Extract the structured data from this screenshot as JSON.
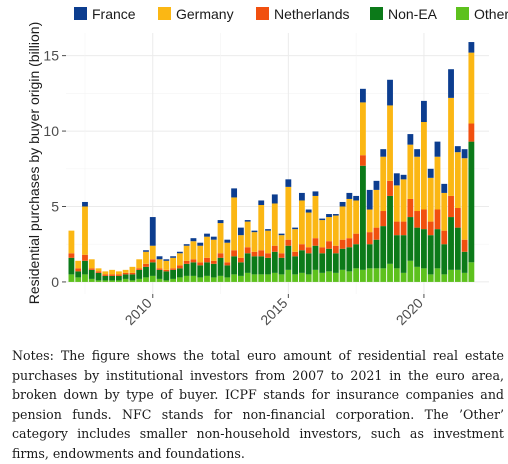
{
  "chart_data": {
    "type": "bar",
    "stacked": true,
    "ylabel": "Residential purchases by buyer origin (billion)",
    "xlabel": "",
    "x_range": [
      2006.8,
      2022.4
    ],
    "ylim": [
      -0.8,
      16.5
    ],
    "yticks": [
      0,
      5,
      10,
      15
    ],
    "xticks": [
      2010,
      2015,
      2020
    ],
    "grid": true,
    "legend_position": "top",
    "legend": [
      "France",
      "Germany",
      "Netherlands",
      "Non-EA",
      "Other EA"
    ],
    "colors": {
      "France": "#0c3d8f",
      "Germany": "#fbb714",
      "Netherlands": "#f1500f",
      "Non-EA": "#0c7a19",
      "Other EA": "#5dc11d"
    },
    "x": [
      2007.0,
      2007.25,
      2007.5,
      2007.75,
      2008.0,
      2008.25,
      2008.5,
      2008.75,
      2009.0,
      2009.25,
      2009.5,
      2009.75,
      2010.0,
      2010.25,
      2010.5,
      2010.75,
      2011.0,
      2011.25,
      2011.5,
      2011.75,
      2012.0,
      2012.25,
      2012.5,
      2012.75,
      2013.0,
      2013.25,
      2013.5,
      2013.75,
      2014.0,
      2014.25,
      2014.5,
      2014.75,
      2015.0,
      2015.25,
      2015.5,
      2015.75,
      2016.0,
      2016.25,
      2016.5,
      2016.75,
      2017.0,
      2017.25,
      2017.5,
      2017.75,
      2018.0,
      2018.25,
      2018.5,
      2018.75,
      2019.0,
      2019.25,
      2019.5,
      2019.75,
      2020.0,
      2020.25,
      2020.5,
      2020.75,
      2021.0,
      2021.25,
      2021.5,
      2021.75
    ],
    "series": [
      {
        "name": "Other EA",
        "values": [
          0.5,
          0.3,
          0.5,
          0.2,
          0.1,
          0.1,
          0.1,
          0.1,
          0.2,
          0.1,
          0.2,
          0.3,
          0.4,
          0.2,
          0.1,
          0.2,
          0.3,
          0.4,
          0.4,
          0.3,
          0.4,
          0.3,
          0.4,
          0.3,
          0.5,
          0.4,
          0.6,
          0.5,
          0.5,
          0.5,
          0.6,
          0.5,
          0.8,
          0.5,
          0.6,
          0.5,
          0.8,
          0.6,
          0.7,
          0.6,
          0.8,
          0.7,
          0.9,
          0.8,
          0.9,
          0.9,
          0.9,
          1.2,
          0.9,
          0.6,
          1.4,
          1.0,
          0.9,
          0.5,
          0.9,
          0.5,
          0.8,
          0.8,
          0.6,
          1.3
        ]
      },
      {
        "name": "Non-EA",
        "values": [
          1.1,
          0.4,
          0.9,
          0.6,
          0.5,
          0.3,
          0.3,
          0.3,
          0.3,
          0.4,
          0.6,
          0.7,
          0.9,
          0.6,
          0.6,
          0.6,
          0.6,
          0.8,
          0.9,
          0.8,
          0.9,
          0.9,
          1.2,
          0.8,
          1.2,
          0.9,
          1.3,
          1.2,
          1.2,
          1.1,
          1.4,
          1.1,
          1.6,
          1.2,
          1.5,
          1.4,
          1.6,
          1.3,
          1.5,
          1.3,
          1.4,
          1.6,
          1.6,
          6.9,
          1.6,
          1.9,
          2.8,
          4.5,
          2.2,
          2.5,
          2.9,
          2.6,
          2.6,
          2.6,
          2.6,
          2.0,
          3.5,
          2.8,
          1.4,
          8.0
        ]
      },
      {
        "name": "Netherlands",
        "values": [
          0.3,
          0.2,
          0.4,
          0.1,
          0.1,
          0.1,
          0.1,
          0.1,
          0.1,
          0.1,
          0.1,
          0.2,
          0.2,
          0.1,
          0.1,
          0.1,
          0.2,
          0.2,
          0.2,
          0.2,
          0.3,
          0.2,
          0.3,
          0.2,
          0.4,
          0.3,
          0.4,
          0.3,
          0.4,
          0.3,
          0.4,
          0.3,
          0.4,
          0.3,
          0.4,
          0.4,
          0.5,
          0.4,
          0.5,
          0.5,
          0.6,
          0.6,
          0.7,
          0.7,
          0.8,
          0.8,
          1.0,
          1.0,
          0.9,
          0.9,
          1.2,
          1.1,
          1.3,
          0.9,
          1.3,
          0.9,
          1.4,
          1.3,
          0.8,
          1.2
        ]
      },
      {
        "name": "Germany",
        "values": [
          1.5,
          0.5,
          3.2,
          0.6,
          0.2,
          0.2,
          0.3,
          0.2,
          0.2,
          0.4,
          0.6,
          0.8,
          0.9,
          0.6,
          0.6,
          0.7,
          0.8,
          1.0,
          1.2,
          1.1,
          1.4,
          1.4,
          2.0,
          1.3,
          3.5,
          1.5,
          1.7,
          1.3,
          3.0,
          1.5,
          2.8,
          1.2,
          3.5,
          1.5,
          2.9,
          2.3,
          2.8,
          1.8,
          1.6,
          2.0,
          2.2,
          2.6,
          2.2,
          3.5,
          1.5,
          2.5,
          3.6,
          5.0,
          2.4,
          2.8,
          3.6,
          3.6,
          5.8,
          2.9,
          3.5,
          2.5,
          6.5,
          3.7,
          5.4,
          4.7
        ]
      },
      {
        "name": "France",
        "values": [
          0.0,
          0.0,
          0.3,
          0.0,
          0.0,
          0.0,
          0.0,
          0.0,
          0.0,
          0.0,
          0.0,
          0.1,
          1.9,
          0.2,
          0.1,
          0.1,
          0.1,
          0.1,
          0.2,
          0.2,
          0.2,
          0.2,
          0.2,
          0.2,
          0.6,
          0.5,
          0.1,
          0.1,
          0.3,
          0.1,
          0.6,
          0.1,
          0.5,
          0.1,
          0.5,
          0.2,
          0.3,
          0.1,
          0.2,
          0.1,
          0.3,
          0.4,
          0.3,
          0.9,
          1.3,
          0.6,
          0.5,
          1.7,
          0.8,
          0.3,
          0.7,
          0.5,
          1.4,
          0.6,
          1.0,
          0.6,
          1.9,
          0.4,
          0.6,
          0.7
        ]
      }
    ]
  },
  "notes": "Notes: The figure shows the total euro amount of residential real estate purchases by institutional investors from 2007 to 2021 in the euro area, broken down by type of buyer. ICPF stands for insurance companies and pension funds. NFC stands for non-financial corporation. The ’Other’ category includes smaller non-household investors, such as investment firms, endowments and foundations."
}
